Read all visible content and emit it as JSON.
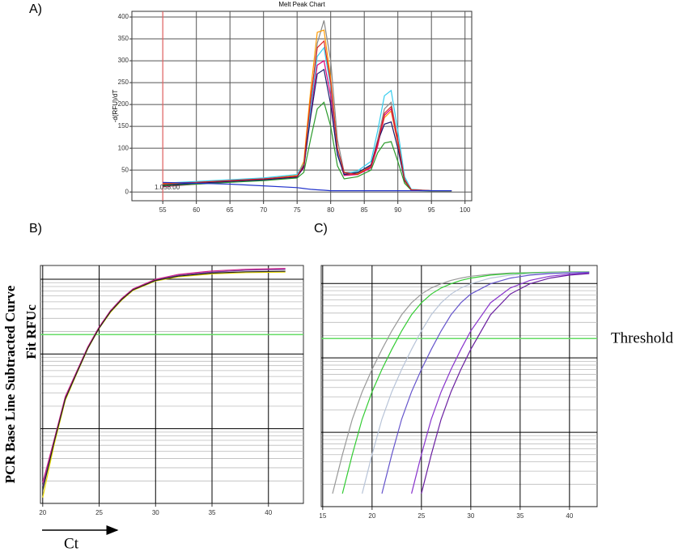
{
  "chart_data": [
    {
      "type": "line",
      "panel_label": "A)",
      "title": "Melt Peak Chart",
      "y_label": "-d(RFU)/dT",
      "annotation": "1.058.00",
      "vline": {
        "x": 55,
        "color": "#ff6666"
      },
      "x": [
        55,
        60,
        65,
        70,
        75,
        76,
        77,
        78,
        79,
        80,
        81,
        82,
        84,
        86,
        87,
        88,
        89,
        90,
        91,
        92,
        95,
        98
      ],
      "xlim": [
        50.4,
        101
      ],
      "xticks": [
        55,
        60,
        65,
        70,
        75,
        80,
        85,
        90,
        95,
        100
      ],
      "ylim": [
        -20,
        413
      ],
      "yticks": [
        0,
        50,
        100,
        150,
        200,
        250,
        300,
        350,
        400
      ],
      "grid": true,
      "series": [
        {
          "color": "#888888",
          "values": [
            15,
            20,
            25,
            28,
            35,
            60,
            200,
            340,
            392,
            300,
            120,
            45,
            45,
            60,
            120,
            190,
            205,
            120,
            30,
            5,
            3,
            3
          ]
        },
        {
          "color": "#ff9900",
          "values": [
            18,
            22,
            26,
            30,
            38,
            70,
            230,
            365,
            370,
            260,
            100,
            40,
            42,
            58,
            110,
            170,
            185,
            110,
            25,
            4,
            3,
            3
          ]
        },
        {
          "color": "#e0007a",
          "values": [
            12,
            18,
            24,
            30,
            36,
            55,
            180,
            290,
            300,
            220,
            90,
            38,
            40,
            55,
            105,
            175,
            190,
            115,
            28,
            5,
            3,
            3
          ]
        },
        {
          "color": "#33ccee",
          "values": [
            20,
            24,
            28,
            32,
            40,
            65,
            190,
            310,
            330,
            240,
            95,
            42,
            48,
            70,
            140,
            220,
            232,
            140,
            35,
            6,
            3,
            3
          ]
        },
        {
          "color": "#2a9a2a",
          "values": [
            14,
            18,
            22,
            26,
            32,
            45,
            120,
            190,
            205,
            150,
            60,
            30,
            35,
            50,
            90,
            112,
            115,
            70,
            20,
            4,
            2,
            2
          ]
        },
        {
          "color": "#1a1a6e",
          "values": [
            16,
            20,
            24,
            28,
            34,
            58,
            170,
            270,
            280,
            200,
            85,
            40,
            44,
            62,
            115,
            155,
            160,
            100,
            26,
            5,
            3,
            3
          ]
        },
        {
          "color": "#dd2222",
          "values": [
            20,
            22,
            26,
            30,
            36,
            62,
            210,
            330,
            345,
            250,
            100,
            44,
            40,
            58,
            112,
            180,
            195,
            118,
            28,
            5,
            3,
            3
          ]
        },
        {
          "color": "#2233cc",
          "values": [
            22,
            20,
            18,
            14,
            10,
            8,
            6,
            5,
            4,
            3,
            3,
            3,
            3,
            3,
            3,
            3,
            3,
            3,
            3,
            3,
            3,
            3
          ]
        }
      ]
    },
    {
      "type": "line",
      "panel_label": "B)",
      "y_label": [
        "PCR Base Line Subtracted Curve",
        "Fit RFUc"
      ],
      "x_label": "Ct",
      "log_y": true,
      "x": [
        20,
        21,
        22,
        23,
        24,
        25,
        26,
        27,
        28,
        30,
        32,
        35,
        38,
        41.5
      ],
      "xlim": [
        19.8,
        43.1
      ],
      "xticks": [
        20,
        25,
        30,
        35,
        40
      ],
      "ylim": [
        1,
        1530
      ],
      "yticks": [
        1,
        10,
        100,
        1000
      ],
      "grid": true,
      "threshold": {
        "value": 182,
        "color": "#66dd66"
      },
      "series": [
        {
          "color": "#7a3fa0",
          "values": [
            1.7,
            6.7,
            26,
            56,
            120,
            223,
            370,
            540,
            730,
            980,
            1130,
            1250,
            1320,
            1350
          ]
        },
        {
          "color": "#cc2288",
          "values": [
            1.9,
            7,
            27,
            58,
            125,
            230,
            380,
            555,
            745,
            1000,
            1160,
            1290,
            1360,
            1400
          ]
        },
        {
          "color": "#e8d800",
          "values": [
            1.2,
            6,
            24,
            54,
            118,
            220,
            360,
            525,
            710,
            950,
            1080,
            1180,
            1230,
            1250
          ]
        },
        {
          "color": "#222222",
          "values": [
            1.5,
            6.5,
            25,
            55,
            120,
            222,
            368,
            535,
            722,
            965,
            1100,
            1210,
            1260,
            1280
          ]
        }
      ]
    },
    {
      "type": "line",
      "panel_label": "C)",
      "log_y": true,
      "x": [
        16,
        17,
        18,
        19,
        20,
        21,
        22,
        23,
        24,
        25,
        26,
        27,
        28,
        29,
        30,
        32,
        34,
        36,
        38,
        40,
        42
      ],
      "xlim": [
        14.85,
        42.8
      ],
      "xticks": [
        15,
        20,
        25,
        30,
        35,
        40
      ],
      "ylim": [
        1,
        1745
      ],
      "yticks": [
        1,
        10,
        100,
        1000
      ],
      "grid": true,
      "threshold": {
        "value": 182,
        "label": "Threshold",
        "color": "#66dd66"
      },
      "series": [
        {
          "color": "#999999",
          "values": [
            1.5,
            5,
            15,
            35,
            70,
            130,
            230,
            380,
            550,
            720,
            870,
            990,
            1100,
            1180,
            1250,
            1330,
            1380,
            1400,
            1420,
            1430,
            1440
          ]
        },
        {
          "color": "#33cc33",
          "values": [
            null,
            1.5,
            5,
            15,
            35,
            70,
            130,
            230,
            380,
            550,
            720,
            870,
            990,
            1100,
            1180,
            1295,
            1360,
            1390,
            1410,
            1425,
            1430
          ]
        },
        {
          "color": "#b8c4d8",
          "values": [
            null,
            null,
            null,
            1.5,
            5,
            15,
            35,
            70,
            130,
            230,
            380,
            550,
            720,
            870,
            990,
            1180,
            1295,
            1360,
            1390,
            1410,
            1425
          ]
        },
        {
          "color": "#6655cc",
          "values": [
            null,
            null,
            null,
            null,
            null,
            1.5,
            5,
            15,
            35,
            70,
            130,
            230,
            380,
            550,
            720,
            990,
            1180,
            1295,
            1360,
            1390,
            1410
          ]
        },
        {
          "color": "#8833cc",
          "values": [
            null,
            null,
            null,
            null,
            null,
            null,
            null,
            null,
            1.5,
            5,
            15,
            35,
            70,
            130,
            230,
            550,
            870,
            1100,
            1250,
            1330,
            1380
          ]
        },
        {
          "color": "#6a1fa0",
          "values": [
            null,
            null,
            null,
            null,
            null,
            null,
            null,
            null,
            null,
            1.5,
            5,
            15,
            35,
            70,
            130,
            380,
            720,
            990,
            1180,
            1295,
            1360
          ]
        }
      ]
    }
  ]
}
